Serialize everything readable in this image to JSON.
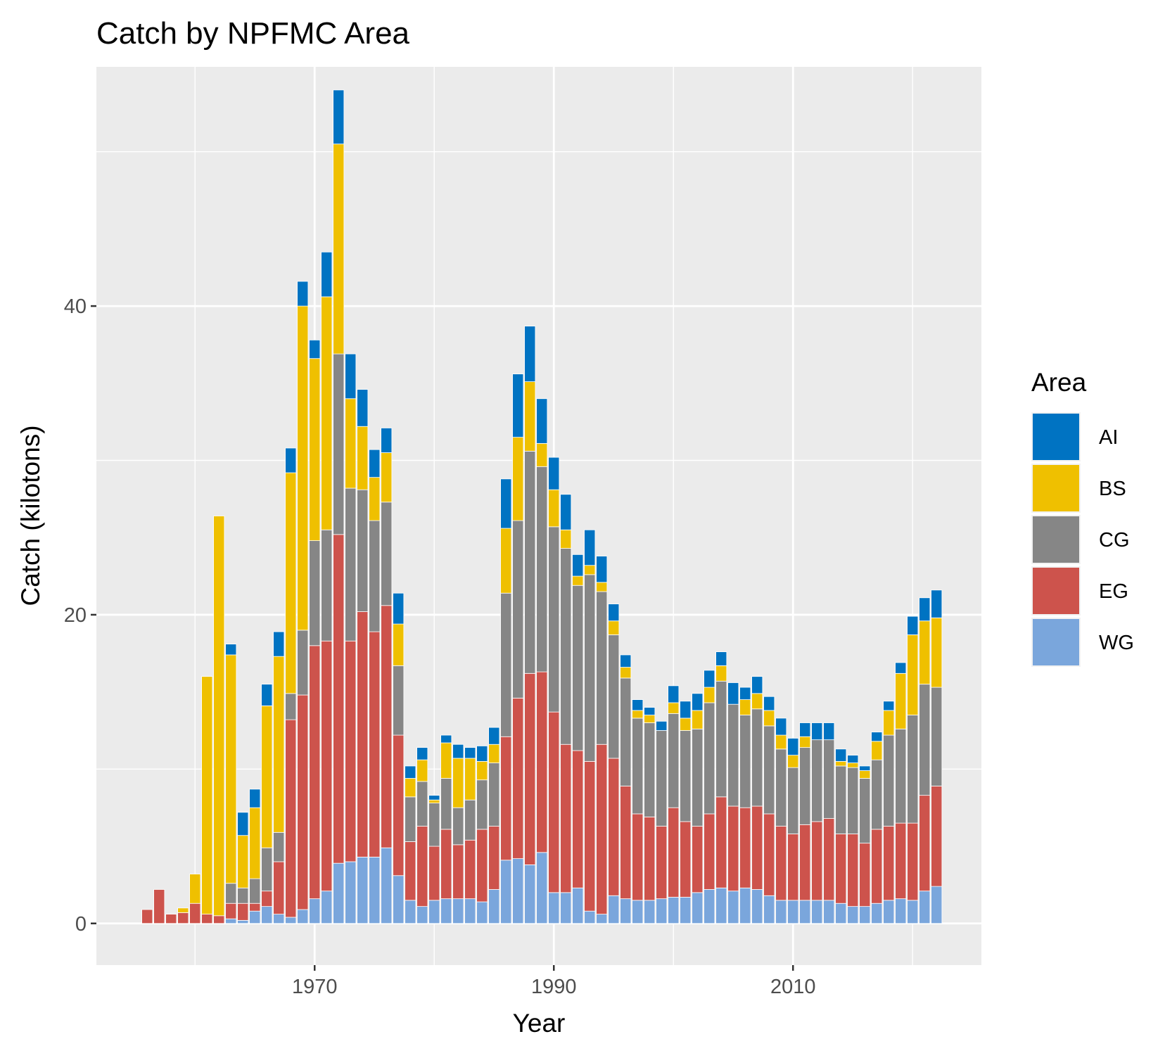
{
  "chart_data": {
    "type": "bar",
    "stacked": true,
    "title": "Catch by NPFMC Area",
    "xlabel": "Year",
    "ylabel": "Catch (kilotons)",
    "xlim": [
      1951.75,
      2025.75
    ],
    "ylim": [
      -2.7,
      55.5
    ],
    "x_ticks": [
      1970,
      1990,
      2010
    ],
    "y_ticks": [
      0,
      20,
      40
    ],
    "grid": true,
    "legend": {
      "title": "Area",
      "position": "right"
    },
    "colors": {
      "AI": "#0073C2",
      "BS": "#EFC000",
      "CG": "#868686",
      "EG": "#CD534C",
      "WG": "#7AA6DC"
    },
    "x": [
      1956,
      1957,
      1958,
      1959,
      1960,
      1961,
      1962,
      1963,
      1964,
      1965,
      1966,
      1967,
      1968,
      1969,
      1970,
      1971,
      1972,
      1973,
      1974,
      1975,
      1976,
      1977,
      1978,
      1979,
      1980,
      1981,
      1982,
      1983,
      1984,
      1985,
      1986,
      1987,
      1988,
      1989,
      1990,
      1991,
      1992,
      1993,
      1994,
      1995,
      1996,
      1997,
      1998,
      1999,
      2000,
      2001,
      2002,
      2003,
      2004,
      2005,
      2006,
      2007,
      2008,
      2009,
      2010,
      2011,
      2012,
      2013,
      2014,
      2015,
      2016,
      2017,
      2018,
      2019,
      2020,
      2021,
      2022
    ],
    "series": [
      {
        "name": "WG",
        "values": [
          0,
          0,
          0,
          0,
          0,
          0,
          0,
          0.3,
          0.2,
          0.8,
          1.1,
          0.6,
          0.4,
          0.9,
          1.6,
          2.1,
          3.9,
          4.0,
          4.3,
          4.3,
          4.9,
          3.1,
          1.5,
          1.1,
          1.5,
          1.6,
          1.6,
          1.6,
          1.4,
          2.2,
          4.1,
          4.2,
          3.8,
          4.6,
          2.0,
          2.0,
          2.3,
          0.8,
          0.6,
          1.8,
          1.6,
          1.5,
          1.5,
          1.6,
          1.7,
          1.7,
          2.0,
          2.2,
          2.3,
          2.1,
          2.3,
          2.2,
          1.8,
          1.5,
          1.5,
          1.5,
          1.5,
          1.5,
          1.3,
          1.1,
          1.1,
          1.3,
          1.5,
          1.6,
          1.5,
          2.1,
          2.4
        ]
      },
      {
        "name": "EG",
        "values": [
          0.9,
          2.2,
          0.6,
          0.7,
          1.3,
          0.6,
          0.5,
          1.0,
          1.1,
          0.5,
          1.0,
          3.4,
          12.8,
          13.9,
          16.4,
          16.2,
          21.3,
          14.3,
          15.9,
          14.6,
          15.7,
          9.1,
          3.8,
          5.2,
          3.5,
          4.5,
          3.5,
          3.8,
          4.7,
          4.1,
          8.0,
          10.4,
          12.4,
          11.7,
          11.7,
          9.6,
          8.9,
          9.7,
          11.0,
          8.9,
          7.3,
          5.6,
          5.4,
          4.7,
          5.8,
          4.9,
          4.3,
          4.9,
          5.9,
          5.5,
          5.2,
          5.4,
          5.3,
          4.8,
          4.3,
          4.9,
          5.1,
          5.3,
          4.5,
          4.7,
          4.1,
          4.8,
          4.8,
          4.9,
          5.0,
          6.2,
          6.5
        ]
      },
      {
        "name": "CG",
        "values": [
          0,
          0,
          0,
          0,
          0,
          0,
          0,
          1.3,
          1.0,
          1.6,
          2.8,
          1.9,
          1.7,
          4.2,
          6.8,
          7.2,
          11.7,
          9.9,
          7.9,
          7.2,
          6.7,
          4.5,
          2.9,
          2.9,
          2.8,
          3.3,
          2.4,
          2.6,
          3.2,
          4.1,
          9.3,
          11.5,
          14.4,
          13.3,
          12.0,
          12.7,
          10.7,
          12.1,
          9.9,
          8.0,
          7.0,
          6.2,
          6.1,
          6.2,
          6.1,
          5.9,
          6.3,
          7.2,
          7.5,
          6.6,
          6.0,
          6.3,
          5.7,
          5.0,
          4.3,
          5.0,
          5.3,
          5.1,
          4.4,
          4.3,
          4.2,
          4.5,
          5.9,
          6.1,
          7.0,
          7.2,
          6.4
        ]
      },
      {
        "name": "BS",
        "values": [
          0,
          0,
          0,
          0.3,
          1.9,
          15.4,
          25.9,
          14.8,
          3.4,
          4.6,
          9.2,
          11.4,
          14.3,
          21.0,
          11.8,
          15.1,
          13.6,
          5.8,
          4.1,
          2.8,
          3.2,
          2.7,
          1.2,
          1.4,
          0.2,
          2.3,
          3.2,
          2.7,
          1.2,
          1.2,
          4.2,
          5.4,
          4.5,
          1.5,
          2.4,
          1.2,
          0.6,
          0.6,
          0.6,
          0.9,
          0.7,
          0.5,
          0.5,
          0,
          0.7,
          0.8,
          1.2,
          1.0,
          1.0,
          0,
          1.0,
          1.0,
          1.0,
          0.9,
          0.8,
          0.7,
          0,
          0,
          0.3,
          0.3,
          0.5,
          1.2,
          1.6,
          3.6,
          5.2,
          4.1,
          4.5
        ]
      },
      {
        "name": "AI",
        "values": [
          0,
          0,
          0,
          0,
          0,
          0,
          0,
          0.7,
          1.5,
          1.2,
          1.4,
          1.6,
          1.6,
          1.6,
          1.2,
          2.9,
          3.5,
          2.9,
          2.4,
          1.8,
          1.6,
          2.0,
          0.8,
          0.8,
          0.3,
          0.5,
          0.9,
          0.7,
          1.0,
          1.1,
          3.2,
          4.1,
          3.6,
          2.9,
          2.1,
          2.3,
          1.4,
          2.3,
          1.7,
          1.1,
          0.8,
          0.7,
          0.5,
          0.6,
          1.1,
          1.1,
          1.1,
          1.1,
          0.9,
          1.4,
          0.8,
          1.1,
          0.9,
          1.1,
          1.1,
          0.9,
          1.1,
          1.1,
          0.8,
          0.5,
          0.3,
          0.6,
          0.6,
          0.7,
          1.2,
          1.5,
          1.8
        ]
      }
    ]
  }
}
